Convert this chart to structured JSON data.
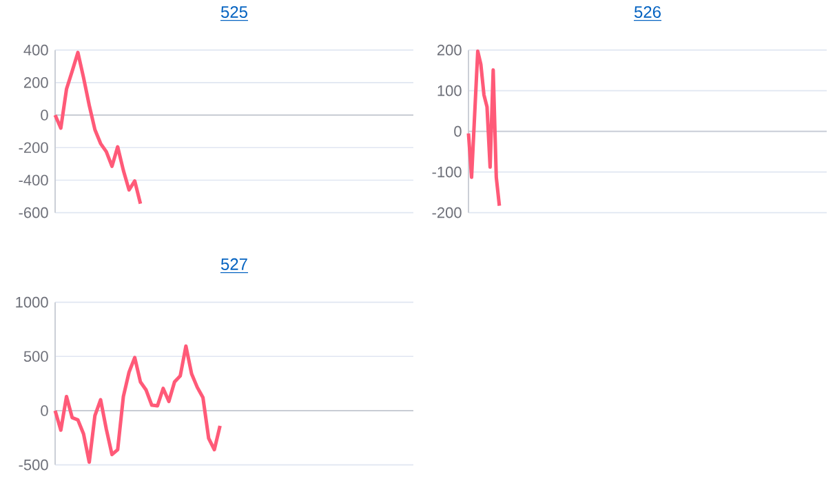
{
  "chart_data": [
    {
      "type": "line",
      "title": "525",
      "categories": [
        null,
        null,
        null,
        null,
        null,
        null,
        null,
        null,
        null,
        null,
        null,
        null,
        null,
        null,
        null,
        null,
        null,
        null,
        null,
        null,
        null,
        null,
        null,
        null,
        null,
        null,
        null,
        null,
        null,
        null,
        null,
        null,
        null,
        null,
        null,
        null,
        null,
        null,
        null,
        null,
        null,
        null,
        null,
        null,
        null,
        null,
        null,
        null,
        null,
        null,
        null,
        null,
        null,
        null,
        null,
        null,
        null,
        null,
        null,
        null,
        null,
        null,
        null,
        null
      ],
      "series": [
        {
          "color": "#ff5a78",
          "values": [
            0,
            -80,
            160,
            270,
            385,
            230,
            60,
            -90,
            -175,
            -225,
            -315,
            -195,
            -340,
            -460,
            -405,
            -545,
            null,
            null,
            null,
            null,
            null,
            null,
            null,
            null,
            null,
            null,
            null,
            null,
            null,
            null,
            null,
            null,
            null,
            null,
            null,
            null,
            null,
            null,
            null,
            null,
            null,
            null,
            null,
            null,
            null,
            null,
            null,
            null,
            null,
            null,
            null,
            null,
            null,
            null,
            null,
            null,
            null,
            null,
            null,
            null,
            null,
            null,
            null,
            null
          ]
        }
      ],
      "ylim": [
        -600,
        400
      ],
      "yticks": [
        -600,
        -400,
        -200,
        0,
        200,
        400
      ],
      "grid": "y",
      "tick_labels": "y"
    },
    {
      "type": "line",
      "title": "526",
      "categories": [
        null,
        null,
        null,
        null,
        null,
        null,
        null,
        null,
        null,
        null,
        null,
        null,
        null,
        null,
        null,
        null,
        null,
        null,
        null,
        null,
        null,
        null,
        null,
        null,
        null,
        null,
        null,
        null,
        null,
        null,
        null,
        null,
        null,
        null,
        null,
        null,
        null,
        null,
        null,
        null,
        null,
        null,
        null,
        null,
        null,
        null,
        null,
        null,
        null,
        null,
        null,
        null,
        null,
        null,
        null,
        null,
        null,
        null,
        null,
        null,
        null,
        null,
        null,
        null,
        null,
        null,
        null,
        null,
        null,
        null,
        null,
        null,
        null,
        null,
        null,
        null,
        null,
        null,
        null,
        null,
        null,
        null,
        null,
        null,
        null,
        null,
        null,
        null,
        null,
        null,
        null,
        null,
        null,
        null,
        null,
        null,
        null,
        null,
        null,
        null,
        null,
        null,
        null,
        null,
        null,
        null,
        null,
        null,
        null,
        null,
        null,
        null,
        null,
        null,
        null,
        null,
        null
      ],
      "series": [
        {
          "color": "#ff5a78",
          "values": [
            -5,
            -113,
            42,
            197,
            165,
            90,
            60,
            -88,
            151,
            -113,
            -183,
            null,
            null,
            null,
            null,
            null,
            null,
            null,
            null,
            null,
            null,
            null,
            null,
            null,
            null,
            null,
            null,
            null,
            null,
            null,
            null,
            null,
            null,
            null,
            null,
            null,
            null,
            null,
            null,
            null,
            null,
            null,
            null,
            null,
            null,
            null,
            null,
            null,
            null,
            null,
            null,
            null,
            null,
            null,
            null,
            null,
            null,
            null,
            null,
            null,
            null,
            null,
            null,
            null,
            null,
            null,
            null,
            null,
            null,
            null,
            null,
            null,
            null,
            null,
            null,
            null,
            null,
            null,
            null,
            null,
            null,
            null,
            null,
            null,
            null,
            null,
            null,
            null,
            null,
            null,
            null,
            null,
            null,
            null,
            null,
            null,
            null,
            null,
            null,
            null,
            null,
            null,
            null,
            null,
            null,
            null,
            null,
            null,
            null,
            null,
            null,
            null,
            null,
            null,
            null,
            null,
            null
          ]
        }
      ],
      "ylim": [
        -200,
        200
      ],
      "yticks": [
        -200,
        -100,
        0,
        100,
        200
      ],
      "grid": "y",
      "tick_labels": "y"
    },
    {
      "type": "line",
      "title": "527",
      "categories": [
        null,
        null,
        null,
        null,
        null,
        null,
        null,
        null,
        null,
        null,
        null,
        null,
        null,
        null,
        null,
        null,
        null,
        null,
        null,
        null,
        null,
        null,
        null,
        null,
        null,
        null,
        null,
        null,
        null,
        null,
        null,
        null,
        null,
        null,
        null,
        null,
        null,
        null,
        null,
        null,
        null,
        null,
        null,
        null,
        null,
        null,
        null,
        null,
        null,
        null,
        null,
        null,
        null,
        null,
        null,
        null,
        null,
        null,
        null,
        null,
        null,
        null,
        null,
        null
      ],
      "series": [
        {
          "color": "#ff5a78",
          "values": [
            0,
            -180,
            130,
            -65,
            -85,
            -215,
            -475,
            -45,
            100,
            -170,
            -405,
            -360,
            130,
            355,
            490,
            265,
            190,
            50,
            45,
            205,
            85,
            265,
            320,
            595,
            340,
            215,
            120,
            -255,
            -360,
            -140,
            null,
            null,
            null,
            null,
            null,
            null,
            null,
            null,
            null,
            null,
            null,
            null,
            null,
            null,
            null,
            null,
            null,
            null,
            null,
            null,
            null,
            null,
            null,
            null,
            null,
            null,
            null,
            null,
            null,
            null,
            null,
            null,
            null,
            null
          ]
        }
      ],
      "ylim": [
        -500,
        1000
      ],
      "yticks": [
        -500,
        0,
        500,
        1000
      ],
      "grid": "y",
      "tick_labels": "y"
    }
  ]
}
